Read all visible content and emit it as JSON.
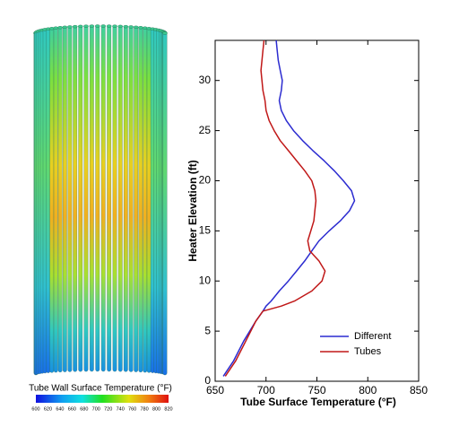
{
  "colorbar": {
    "title": "Tube Wall Surface Temperature (°F)",
    "lim": [
      600,
      820
    ],
    "ticks": [
      600,
      620,
      640,
      660,
      680,
      700,
      720,
      740,
      760,
      780,
      800,
      820
    ]
  },
  "chart_data": {
    "type": "line",
    "xlabel": "Tube Surface Temperature (°F)",
    "ylabel": "Heater Elevation (ft)",
    "xlim": [
      650,
      850
    ],
    "xticks": [
      650,
      700,
      750,
      800,
      850
    ],
    "ylim": [
      0,
      34
    ],
    "yticks": [
      0,
      5,
      10,
      15,
      20,
      25,
      30
    ],
    "legend": "lower right",
    "elevation": [
      0.5,
      2,
      4,
      6,
      7,
      7.5,
      8,
      9,
      10,
      11,
      12,
      13,
      14,
      15,
      16,
      17,
      18,
      19,
      20,
      21,
      22,
      23,
      24,
      25,
      26,
      27,
      28,
      29,
      30,
      31,
      32,
      33,
      34
    ],
    "series": [
      {
        "name": "Different",
        "color": "#2b2bd0",
        "values": [
          658,
          668,
          678,
          690,
          697,
          700,
          705,
          713,
          722,
          730,
          738,
          745,
          752,
          762,
          773,
          782,
          787,
          784,
          776,
          767,
          757,
          746,
          736,
          727,
          720,
          715,
          713,
          715,
          716,
          714,
          712,
          711,
          710
        ]
      },
      {
        "name": "Tubes",
        "color": "#c01818",
        "values": [
          660,
          670,
          680,
          690,
          697,
          715,
          728,
          745,
          755,
          758,
          752,
          743,
          741,
          744,
          747,
          748,
          749,
          748,
          745,
          738,
          730,
          722,
          714,
          708,
          703,
          700,
          699,
          697,
          696,
          695,
          696,
          697,
          698
        ]
      }
    ]
  }
}
